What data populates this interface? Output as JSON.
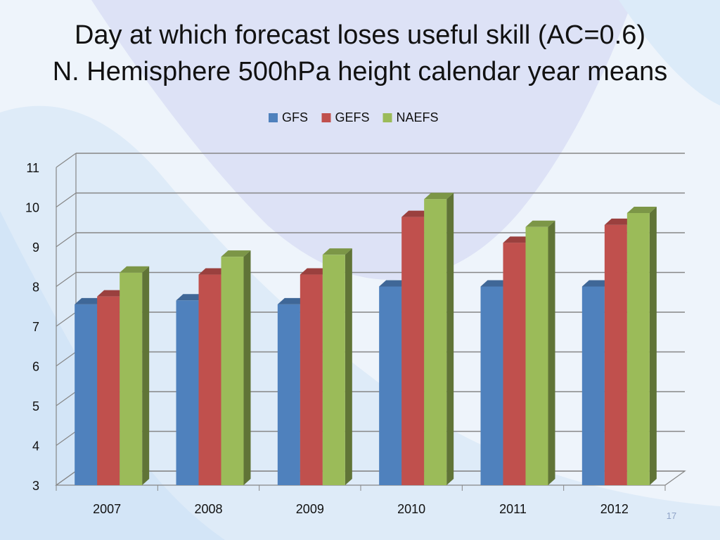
{
  "slide": {
    "title_line1": "Day at which forecast loses useful skill (AC=0.6)",
    "title_line2": "N. Hemisphere 500hPa height calendar year means",
    "slide_number": "17"
  },
  "colors": {
    "background": "#eef4fb",
    "GFS": "#4f81bd",
    "GEFS": "#c0504d",
    "NAEFS": "#9bbb59"
  },
  "chart_data": {
    "type": "bar",
    "title": "",
    "xlabel": "",
    "ylabel": "",
    "categories": [
      "2007",
      "2008",
      "2009",
      "2010",
      "2011",
      "2012"
    ],
    "series": [
      {
        "name": "GFS",
        "values": [
          7.55,
          7.65,
          7.55,
          8.0,
          8.0,
          8.0
        ]
      },
      {
        "name": "GEFS",
        "values": [
          7.75,
          8.3,
          8.3,
          9.75,
          9.1,
          9.55
        ]
      },
      {
        "name": "NAEFS",
        "values": [
          8.35,
          8.75,
          8.8,
          10.2,
          9.5,
          9.85
        ]
      }
    ],
    "ylim": [
      3,
      11
    ],
    "yticks": [
      3,
      4,
      5,
      6,
      7,
      8,
      9,
      10,
      11
    ],
    "grid": true,
    "legend": "top",
    "style": "3d-clustered-column"
  }
}
